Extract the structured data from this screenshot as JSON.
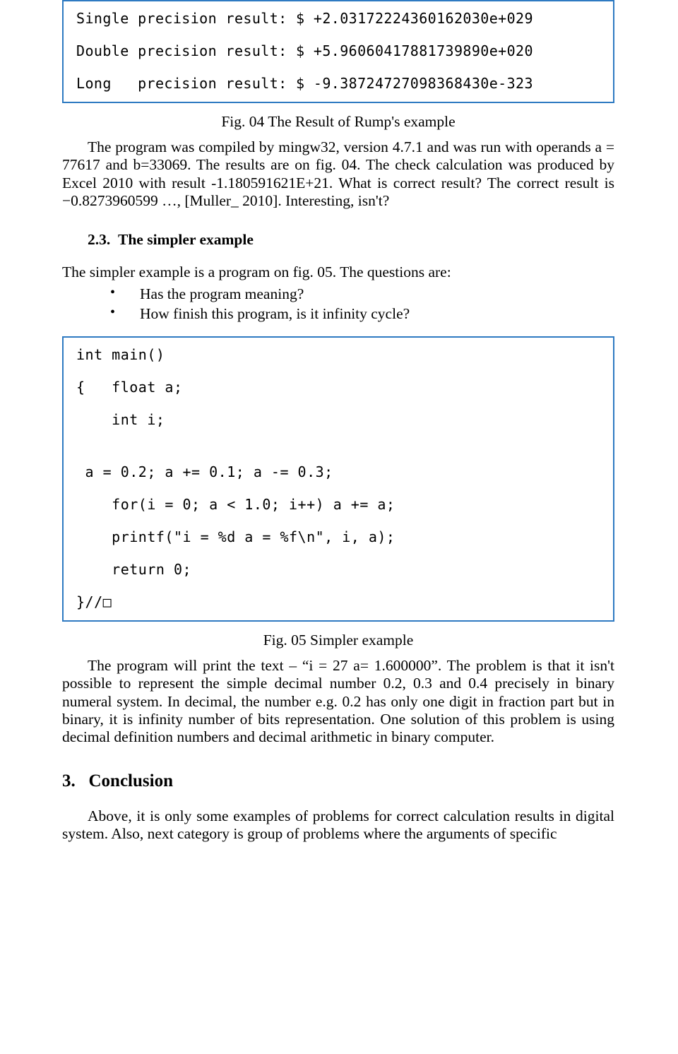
{
  "colors": {
    "box_border": "#2e7ac2",
    "text": "#000000",
    "background": "#ffffff"
  },
  "typography": {
    "body_font": "Times New Roman",
    "body_size_pt": 16,
    "code_font": "Consolas",
    "code_size_pt": 15
  },
  "codebox1": {
    "lines": [
      "Single precision result: $ +2.03172224360162030e+029",
      "Double precision result: $ +5.96060417881739890e+020",
      "Long   precision result: $ -9.38724727098368430e-323"
    ]
  },
  "fig04_caption": "Fig. 04 The Result of Rump's example",
  "para1": "The program was compiled by mingw32, version 4.7.1 and was run with operands a = 77617 and b=33069. The results are on fig. 04. The check calculation was produced by Excel 2010 with result -1.180591621E+21. What is correct result? The correct result is −0.8273960599 …, [Muller_ 2010]. Interesting, isn't?",
  "subsection_2_3": "2.3.  The simpler example",
  "para2": "The simpler example is a program on fig. 05. The questions are:",
  "bullets": [
    "Has the program meaning?",
    "How finish this program, is it infinity cycle?"
  ],
  "codebox2": {
    "lines": [
      "int main()",
      "{   float a;",
      "    int i;",
      "",
      " a = 0.2; a += 0.1; a -= 0.3;",
      "    for(i = 0; a < 1.0; i++) a += a;",
      "    printf(\"i = %d a = %f\\n\", i, a);",
      "    return 0;",
      "}//□"
    ]
  },
  "fig05_caption": "Fig. 05 Simpler example",
  "para3": "The program will print the text – “i = 27 a= 1.600000”. The problem is that it isn't possible to represent the simple decimal number 0.2, 0.3 and 0.4 precisely in binary numeral system. In decimal, the number e.g. 0.2 has only one digit in fraction part but in binary, it is infinity number of bits representation. One solution of this problem is using decimal definition numbers and decimal arithmetic in binary computer.",
  "conclusion_head": "3.   Conclusion",
  "para4": "Above, it is only some examples of problems for correct calculation results in digital system. Also, next category is group of problems where the arguments of specific"
}
